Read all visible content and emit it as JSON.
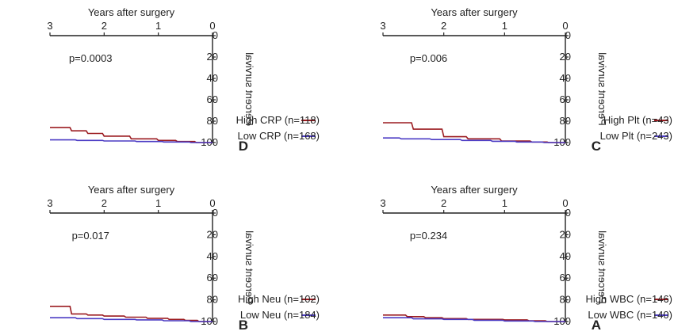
{
  "colors": {
    "high": "#9b1b20",
    "low": "#4b3bc4",
    "axis": "#222222"
  },
  "chart_data": [
    {
      "panel": "C",
      "type": "line",
      "xlabel": "Years after surgery",
      "ylabel": "Percent survival",
      "xlim": [
        0,
        3
      ],
      "ylim": [
        0,
        100
      ],
      "xticks": [
        "0",
        "1",
        "2",
        "3"
      ],
      "yticks": [
        "0",
        "20",
        "40",
        "60",
        "80",
        "100"
      ],
      "annotation": "p=0.006",
      "series": [
        {
          "key": "high",
          "name": "High Plt (n=43)",
          "x": [
            0,
            0.28,
            0.3,
            0.55,
            0.58,
            1.05,
            1.08,
            1.6,
            1.63,
            2.0,
            2.03,
            2.5,
            2.53,
            3.0
          ],
          "y": [
            100,
            100,
            99.5,
            99.5,
            98.5,
            98.5,
            96.5,
            96.5,
            94.5,
            94.5,
            87.5,
            87.5,
            81.5,
            81.5
          ]
        },
        {
          "key": "low",
          "name": "Low Plt (n=243)",
          "x": [
            0,
            0.35,
            0.38,
            0.8,
            0.83,
            1.2,
            1.23,
            1.7,
            1.73,
            2.2,
            2.23,
            2.7,
            2.73,
            3.0
          ],
          "y": [
            100,
            100,
            99.5,
            99.5,
            98.8,
            98.8,
            98,
            98,
            97.2,
            97.2,
            96.5,
            96.5,
            95.7,
            95.7
          ]
        }
      ]
    },
    {
      "panel": "D",
      "type": "line",
      "xlabel": "Years after surgery",
      "ylabel": "Percent survival",
      "xlim": [
        0,
        3
      ],
      "ylim": [
        0,
        100
      ],
      "xticks": [
        "0",
        "1",
        "2",
        "3"
      ],
      "yticks": [
        "0",
        "20",
        "40",
        "60",
        "80",
        "100"
      ],
      "annotation": "p=0.0003",
      "series": [
        {
          "key": "high",
          "name": "High CRP (n=118)",
          "x": [
            0,
            0.3,
            0.33,
            0.65,
            0.68,
            1.0,
            1.03,
            1.5,
            1.53,
            2.0,
            2.03,
            2.3,
            2.33,
            2.6,
            2.63,
            3.0
          ],
          "y": [
            100,
            100,
            99,
            99,
            98,
            98,
            96.5,
            96.5,
            94,
            94,
            91.5,
            91.5,
            89,
            89,
            86,
            86
          ]
        },
        {
          "key": "low",
          "name": "Low CRP (n=168)",
          "x": [
            0,
            0.4,
            0.43,
            0.9,
            0.93,
            1.4,
            1.43,
            2.0,
            2.03,
            2.5,
            2.53,
            3.0
          ],
          "y": [
            100,
            100,
            99.5,
            99.5,
            99,
            99,
            98.5,
            98.5,
            98,
            98,
            97.5,
            97.5
          ]
        }
      ]
    },
    {
      "panel": "A",
      "type": "line",
      "xlabel": "Years after surgery",
      "ylabel": "Percent survival",
      "xlim": [
        0,
        3
      ],
      "ylim": [
        0,
        100
      ],
      "xticks": [
        "0",
        "1",
        "2",
        "3"
      ],
      "yticks": [
        "0",
        "20",
        "40",
        "60",
        "80",
        "100"
      ],
      "annotation": "p=0.234",
      "series": [
        {
          "key": "high",
          "name": "High WBC (n=146)",
          "x": [
            0,
            0.3,
            0.33,
            0.6,
            0.63,
            1.0,
            1.03,
            1.6,
            1.63,
            2.0,
            2.03,
            2.3,
            2.33,
            2.6,
            2.63,
            3.0
          ],
          "y": [
            100,
            100,
            99.3,
            99.3,
            98.5,
            98.5,
            98,
            98,
            97.3,
            97.3,
            96.5,
            96.5,
            95.5,
            95.5,
            94,
            94
          ]
        },
        {
          "key": "low",
          "name": "Low WBC (n=140)",
          "x": [
            0,
            0.5,
            0.53,
            1.0,
            1.03,
            1.5,
            1.53,
            2.0,
            2.03,
            2.5,
            2.53,
            3.0
          ],
          "y": [
            100,
            100,
            99.5,
            99.5,
            98.8,
            98.8,
            98,
            98,
            97.5,
            97.5,
            96.5,
            96.5
          ]
        }
      ]
    },
    {
      "panel": "B",
      "type": "line",
      "xlabel": "Years after surgery",
      "ylabel": "Percent survival",
      "xlim": [
        0,
        3
      ],
      "ylim": [
        0,
        100
      ],
      "xticks": [
        "0",
        "1",
        "2",
        "3"
      ],
      "yticks": [
        "0",
        "20",
        "40",
        "60",
        "80",
        "100"
      ],
      "annotation": "p=0.017",
      "series": [
        {
          "key": "high",
          "name": "High Neu (n=102)",
          "x": [
            0,
            0.25,
            0.28,
            0.5,
            0.53,
            0.8,
            0.83,
            1.2,
            1.23,
            1.6,
            1.63,
            2.0,
            2.03,
            2.3,
            2.33,
            2.6,
            2.63,
            3.0
          ],
          "y": [
            100,
            100,
            99,
            99,
            98,
            98,
            97,
            97,
            96,
            96,
            95,
            95,
            94,
            94,
            93,
            93,
            86,
            86
          ]
        },
        {
          "key": "low",
          "name": "Low Neu (n=184)",
          "x": [
            0,
            0.4,
            0.43,
            0.9,
            0.93,
            1.4,
            1.43,
            2.0,
            2.03,
            2.5,
            2.53,
            3.0
          ],
          "y": [
            100,
            100,
            99.3,
            99.3,
            98.5,
            98.5,
            98,
            98,
            97.3,
            97.3,
            96.5,
            96.5
          ]
        }
      ]
    }
  ]
}
